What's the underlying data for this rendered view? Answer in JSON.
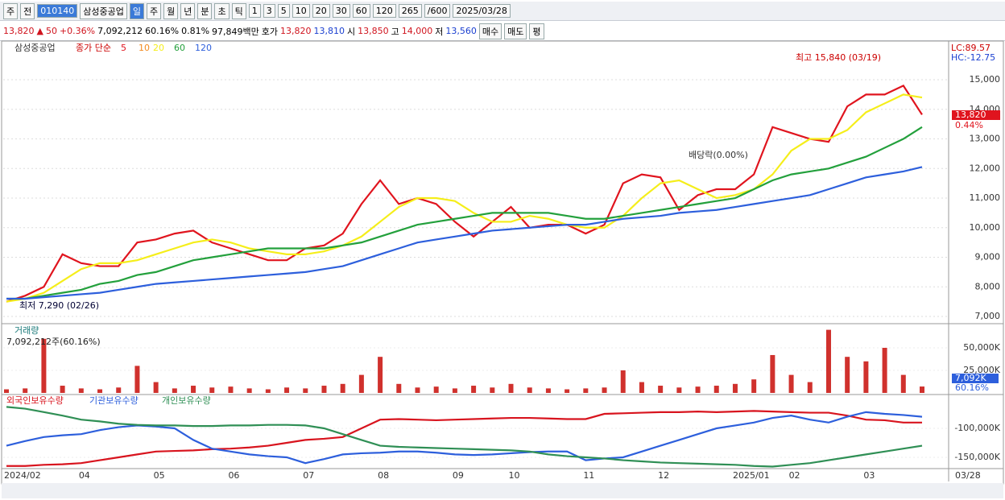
{
  "toolbar": {
    "row1": [
      "주",
      "전",
      "010140",
      "삼성중공업",
      "일",
      "주",
      "월",
      "년",
      "분",
      "초",
      "틱",
      "1",
      "3",
      "5",
      "10",
      "20",
      "30",
      "60",
      "120",
      "265",
      "/600",
      "2025/03/28"
    ],
    "row2": [
      "13,820",
      "▲",
      "50",
      "+0.36%",
      "7,092,212",
      "60.16%",
      "0.81%",
      "97,849백만",
      "호가",
      "13,820",
      "13,810",
      "시",
      "13,850",
      "고",
      "14,000",
      "저",
      "13,560",
      "매수",
      "매도",
      "평"
    ]
  },
  "chart_data": [
    {
      "type": "line",
      "title": "삼성중공업",
      "legend_prefix": "종가 단순",
      "ma10_label": "10",
      "ma10_color": "#f28a1e",
      "categories": [
        "2024/02",
        null,
        null,
        null,
        "04",
        null,
        null,
        null,
        "05",
        null,
        null,
        null,
        "06",
        null,
        null,
        null,
        "07",
        null,
        null,
        null,
        "08",
        null,
        null,
        null,
        "09",
        null,
        null,
        "10",
        null,
        null,
        null,
        "11",
        null,
        null,
        null,
        "12",
        null,
        null,
        null,
        "2025/01",
        null,
        null,
        "02",
        null,
        null,
        null,
        "03",
        null,
        null,
        null
      ],
      "last_date": "03/28",
      "series": [
        {
          "name": "5",
          "color": "#e0141e",
          "values": [
            7500,
            7700,
            8000,
            9100,
            8800,
            8700,
            8700,
            9500,
            9600,
            9800,
            9900,
            9500,
            9300,
            9100,
            8900,
            8900,
            9300,
            9400,
            9800,
            10800,
            11600,
            10800,
            11000,
            10800,
            10200,
            9700,
            10200,
            10700,
            10000,
            10100,
            10100,
            9800,
            10100,
            11500,
            11800,
            11700,
            10600,
            11100,
            11300,
            11300,
            11800,
            13400,
            13200,
            13000,
            12900,
            14100,
            14500,
            14500,
            14800,
            13820
          ]
        },
        {
          "name": "20",
          "color": "#f5ee1a",
          "values": [
            7500,
            7600,
            7800,
            8200,
            8600,
            8800,
            8800,
            8900,
            9100,
            9300,
            9500,
            9600,
            9500,
            9300,
            9200,
            9100,
            9100,
            9200,
            9400,
            9700,
            10200,
            10700,
            11000,
            11000,
            10900,
            10500,
            10200,
            10200,
            10400,
            10300,
            10100,
            10000,
            10000,
            10400,
            11000,
            11500,
            11600,
            11300,
            11000,
            11100,
            11300,
            11800,
            12600,
            13000,
            13000,
            13300,
            13900,
            14200,
            14500,
            14400
          ]
        },
        {
          "name": "60",
          "color": "#23a03c",
          "values": [
            7600,
            7600,
            7700,
            7800,
            7900,
            8100,
            8200,
            8400,
            8500,
            8700,
            8900,
            9000,
            9100,
            9200,
            9300,
            9300,
            9300,
            9300,
            9400,
            9500,
            9700,
            9900,
            10100,
            10200,
            10300,
            10400,
            10500,
            10500,
            10500,
            10500,
            10400,
            10300,
            10300,
            10400,
            10500,
            10600,
            10700,
            10800,
            10900,
            11000,
            11300,
            11600,
            11800,
            11900,
            12000,
            12200,
            12400,
            12700,
            13000,
            13400
          ]
        },
        {
          "name": "120",
          "color": "#2d5fdc",
          "values": [
            7600,
            7600,
            7650,
            7700,
            7750,
            7800,
            7900,
            8000,
            8100,
            8150,
            8200,
            8250,
            8300,
            8350,
            8400,
            8450,
            8500,
            8600,
            8700,
            8900,
            9100,
            9300,
            9500,
            9600,
            9700,
            9800,
            9900,
            9950,
            10000,
            10050,
            10100,
            10100,
            10200,
            10300,
            10350,
            10400,
            10500,
            10550,
            10600,
            10700,
            10800,
            10900,
            11000,
            11100,
            11300,
            11500,
            11700,
            11800,
            11900,
            12050
          ]
        }
      ],
      "ylim": [
        6810,
        16280
      ],
      "yticks": [
        {
          "value": 7000,
          "label": "7,000"
        },
        {
          "value": 8000,
          "label": "8,000"
        },
        {
          "value": 9000,
          "label": "9,000"
        },
        {
          "value": 10000,
          "label": "10,000"
        },
        {
          "value": 11000,
          "label": "11,000"
        },
        {
          "value": 12000,
          "label": "12,000"
        },
        {
          "value": 13000,
          "label": "13,000"
        },
        {
          "value": 14000,
          "label": "14,000"
        },
        {
          "value": 15000,
          "label": "15,000"
        }
      ],
      "annotations": {
        "high": "최고 15,840 (03/19)",
        "low": "최저 7,290 (02/26)",
        "dividend": "배당락(0.00%)",
        "lc": "LC:89.57",
        "hc": "HC:-12.75",
        "last_price": "13,820",
        "change": "0.44%"
      },
      "grid": true
    },
    {
      "type": "bar",
      "title": "거래량",
      "subtitle": "7,092,212주(60.16%)",
      "color": "#d0312d",
      "values": [
        4000,
        5000,
        60000,
        8000,
        5000,
        4000,
        6000,
        30000,
        12000,
        5000,
        8000,
        6000,
        7000,
        5000,
        4000,
        6000,
        5000,
        8000,
        10000,
        20000,
        40000,
        10000,
        6000,
        7000,
        5000,
        8000,
        6000,
        10000,
        6000,
        5000,
        4000,
        5000,
        6000,
        25000,
        12000,
        8000,
        6000,
        7000,
        8000,
        10000,
        15000,
        42000,
        20000,
        12000,
        70000,
        40000,
        35000,
        50000,
        20000,
        7092
      ],
      "ylim": [
        0,
        75000
      ],
      "yticks": [
        {
          "value": 25000,
          "label": "25,000K"
        },
        {
          "value": 50000,
          "label": "50,000K"
        }
      ],
      "last_labels": [
        "7,092K",
        "60.16%"
      ]
    },
    {
      "type": "line",
      "series": [
        {
          "name": "외국인보유수량",
          "color": "#d8141e",
          "values": [
            -165000,
            -165000,
            -163000,
            -162000,
            -160000,
            -155000,
            -150000,
            -145000,
            -140000,
            -139000,
            -138000,
            -136000,
            -135000,
            -133000,
            -130000,
            -125000,
            -120000,
            -118000,
            -115000,
            -100000,
            -85000,
            -84000,
            -85000,
            -86000,
            -85000,
            -84000,
            -83000,
            -82000,
            -82000,
            -83000,
            -84000,
            -84000,
            -75000,
            -74000,
            -73000,
            -72000,
            -72000,
            -71000,
            -72000,
            -71000,
            -70000,
            -71000,
            -72000,
            -73000,
            -73000,
            -78000,
            -85000,
            -86000,
            -90000,
            -90000
          ]
        },
        {
          "name": "기관보유수량",
          "color": "#2d5fdc",
          "values": [
            -130000,
            -122000,
            -115000,
            -112000,
            -110000,
            -103000,
            -98000,
            -95000,
            -97000,
            -100000,
            -120000,
            -135000,
            -140000,
            -145000,
            -148000,
            -150000,
            -160000,
            -153000,
            -145000,
            -143000,
            -142000,
            -140000,
            -140000,
            -142000,
            -145000,
            -146000,
            -145000,
            -143000,
            -141000,
            -140000,
            -140000,
            -155000,
            -152000,
            -150000,
            -140000,
            -130000,
            -120000,
            -110000,
            -100000,
            -95000,
            -90000,
            -82000,
            -78000,
            -85000,
            -90000,
            -80000,
            -72000,
            -75000,
            -77000,
            -80000
          ]
        },
        {
          "name": "개인보유수량",
          "color": "#2f8f55",
          "values": [
            -63000,
            -66000,
            -72000,
            -78000,
            -85000,
            -88000,
            -92000,
            -94000,
            -95000,
            -95000,
            -96000,
            -96000,
            -95000,
            -95000,
            -94000,
            -94000,
            -95000,
            -100000,
            -110000,
            -120000,
            -130000,
            -132000,
            -133000,
            -134000,
            -135000,
            -136000,
            -137000,
            -138000,
            -140000,
            -145000,
            -148000,
            -150000,
            -152000,
            -155000,
            -157000,
            -159000,
            -160000,
            -161000,
            -162000,
            -163000,
            -165000,
            -166000,
            -163000,
            -160000,
            -155000,
            -150000,
            -145000,
            -140000,
            -135000,
            -130000
          ]
        }
      ],
      "ylim": [
        -166700,
        -47200
      ],
      "yticks": [
        {
          "value": -100000,
          "label": "-100,000K"
        },
        {
          "value": -150000,
          "label": "-150,000K"
        }
      ]
    }
  ]
}
